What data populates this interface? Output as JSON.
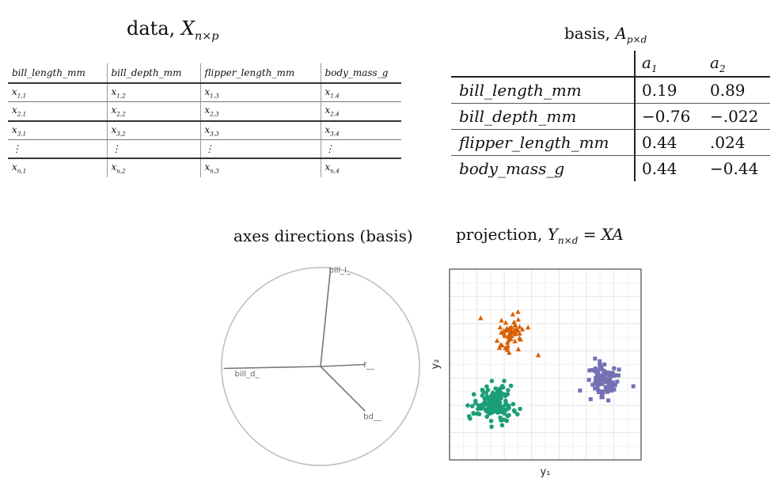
{
  "data_panel": {
    "title_prefix": "data, ",
    "title_symbol": "X",
    "title_subscript": "n×p",
    "columns": [
      "bill_length_mm",
      "bill_depth_mm",
      "flipper_length_mm",
      "body_mass_g"
    ],
    "rows": [
      [
        {
          "b": "x",
          "s": "1,1"
        },
        {
          "b": "x",
          "s": "1,2"
        },
        {
          "b": "x",
          "s": "1,3"
        },
        {
          "b": "x",
          "s": "1,4"
        }
      ],
      [
        {
          "b": "x",
          "s": "2,1"
        },
        {
          "b": "x",
          "s": "2,2"
        },
        {
          "b": "x",
          "s": "2,3"
        },
        {
          "b": "x",
          "s": "2,4"
        }
      ],
      [
        {
          "b": "x",
          "s": "3,1"
        },
        {
          "b": "x",
          "s": "3,2"
        },
        {
          "b": "x",
          "s": "3,3"
        },
        {
          "b": "x",
          "s": "3,4"
        }
      ],
      [
        {
          "b": "⋮",
          "s": ""
        },
        {
          "b": "⋮",
          "s": ""
        },
        {
          "b": "⋮",
          "s": ""
        },
        {
          "b": "⋮",
          "s": ""
        }
      ],
      [
        {
          "b": "x",
          "s": "n,1"
        },
        {
          "b": "x",
          "s": "n,2"
        },
        {
          "b": "x",
          "s": "n,3"
        },
        {
          "b": "x",
          "s": "n,4"
        }
      ]
    ]
  },
  "basis_panel": {
    "title_prefix": "basis, ",
    "title_symbol": "A",
    "title_subscript": "p×d",
    "columns": [
      {
        "b": "a",
        "s": "1"
      },
      {
        "b": "a",
        "s": "2"
      }
    ],
    "rows": [
      {
        "name": "bill_length_mm",
        "a1": "0.19",
        "a2": "0.89"
      },
      {
        "name": "bill_depth_mm",
        "a1": "−0.76",
        "a2": "−.022"
      },
      {
        "name": "flipper_length_mm",
        "a1": "0.44",
        "a2": ".024"
      },
      {
        "name": "body_mass_g",
        "a1": "0.44",
        "a2": "−0.44"
      }
    ]
  },
  "axes_panel": {
    "title": "axes directions (basis)",
    "axes": [
      {
        "label": "bill_l_",
        "dx": 0.1,
        "dy": 0.98
      },
      {
        "label": "bill_d_",
        "dx": -0.98,
        "dy": -0.02
      },
      {
        "label": "f__",
        "dx": 0.45,
        "dy": 0.02
      },
      {
        "label": "bd__",
        "dx": 0.45,
        "dy": -0.45
      }
    ]
  },
  "projection_panel": {
    "title_prefix": "projection, ",
    "title_symbol": "Y",
    "title_subscript": "n×d",
    "title_suffix": " = XA",
    "xlabel": "y₁",
    "ylabel": "y₂",
    "colors": {
      "triangles": "#d95f02",
      "circles": "#1b9e77",
      "squares": "#7570b3"
    }
  },
  "chart_data": {
    "type": "scatter",
    "xlabel": "y1",
    "ylabel": "y2",
    "xlim": [
      0,
      1
    ],
    "ylim": [
      0,
      1
    ],
    "grid": true,
    "series": [
      {
        "marker": "triangle",
        "color": "#d95f02",
        "center": [
          0.32,
          0.67
        ],
        "spread": [
          0.07,
          0.09
        ],
        "count": 60,
        "seed": 11
      },
      {
        "marker": "circle",
        "color": "#1b9e77",
        "center": [
          0.23,
          0.29
        ],
        "spread": [
          0.09,
          0.08
        ],
        "count": 140,
        "seed": 29
      },
      {
        "marker": "square",
        "color": "#7570b3",
        "center": [
          0.81,
          0.42
        ],
        "spread": [
          0.07,
          0.07
        ],
        "count": 110,
        "seed": 53
      }
    ]
  }
}
